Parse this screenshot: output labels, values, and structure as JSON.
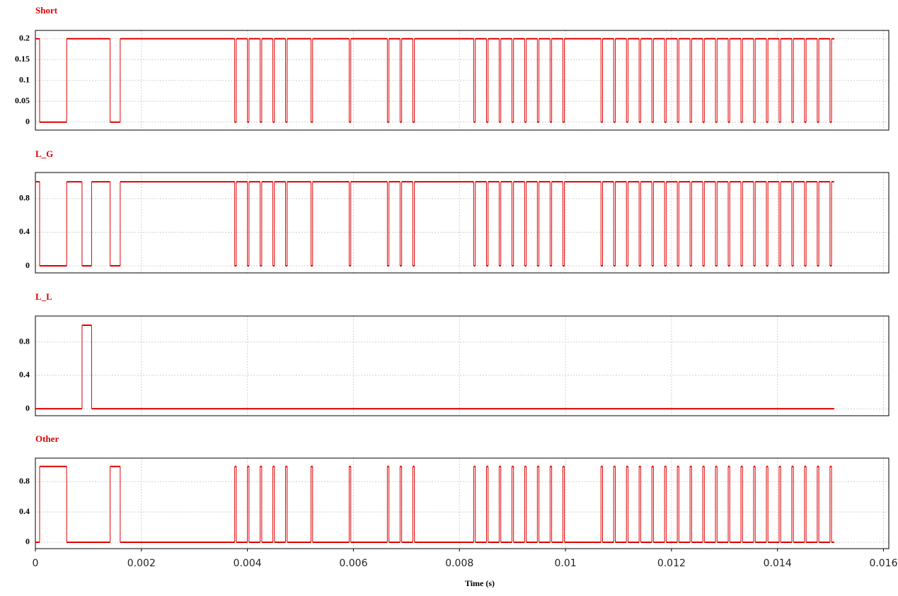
{
  "chart_data": [
    {
      "type": "line",
      "step": "post",
      "title": "Short",
      "color": "#e00000",
      "grid": true,
      "xlim": [
        0,
        0.0161
      ],
      "ylim": [
        -0.019,
        0.22
      ],
      "yticks": [
        0,
        0.05,
        0.1,
        0.15,
        0.2
      ],
      "x": [
        0,
        8e-05,
        0.00059,
        0.00141,
        0.0016,
        0.00376,
        0.00379,
        0.004,
        0.00403,
        0.00424,
        0.00427,
        0.00448,
        0.00451,
        0.00472,
        0.00475,
        0.0052,
        0.00523,
        0.00592,
        0.00595,
        0.00664,
        0.00667,
        0.00688,
        0.00691,
        0.00712,
        0.00715,
        0.00827,
        0.0083,
        0.00851,
        0.00854,
        0.00875,
        0.00878,
        0.00899,
        0.00902,
        0.00923,
        0.00926,
        0.00947,
        0.0095,
        0.00971,
        0.00974,
        0.00995,
        0.00998,
        0.01067,
        0.0107,
        0.01091,
        0.01094,
        0.01115,
        0.01118,
        0.01139,
        0.01142,
        0.01163,
        0.01166,
        0.01187,
        0.0119,
        0.01211,
        0.01214,
        0.01235,
        0.01238,
        0.01259,
        0.01262,
        0.01283,
        0.01286,
        0.01307,
        0.0131,
        0.01331,
        0.01334,
        0.01355,
        0.01358,
        0.01379,
        0.01382,
        0.01403,
        0.01406,
        0.01427,
        0.0143,
        0.01451,
        0.01454,
        0.01475,
        0.01478,
        0.01499,
        0.01502,
        0.01507
      ],
      "values": [
        0.2,
        0,
        0.2,
        0,
        0.2,
        0,
        0.2,
        0,
        0.2,
        0,
        0.2,
        0,
        0.2,
        0,
        0.2,
        0,
        0.2,
        0,
        0.2,
        0,
        0.2,
        0,
        0.2,
        0,
        0.2,
        0,
        0.2,
        0,
        0.2,
        0,
        0.2,
        0,
        0.2,
        0,
        0.2,
        0,
        0.2,
        0,
        0.2,
        0,
        0.2,
        0,
        0.2,
        0,
        0.2,
        0,
        0.2,
        0,
        0.2,
        0,
        0.2,
        0,
        0.2,
        0,
        0.2,
        0,
        0.2,
        0,
        0.2,
        0,
        0.2,
        0,
        0.2,
        0,
        0.2,
        0,
        0.2,
        0,
        0.2,
        0,
        0.2,
        0,
        0.2,
        0,
        0.2,
        0,
        0.2,
        0,
        0.2,
        0.2
      ]
    },
    {
      "type": "line",
      "step": "post",
      "title": "L_G",
      "color": "#e00000",
      "grid": true,
      "xlim": [
        0,
        0.0161
      ],
      "ylim": [
        -0.084,
        1.11
      ],
      "yticks": [
        0,
        0.4,
        0.8
      ],
      "x": [
        0,
        8e-05,
        0.00059,
        0.00088,
        0.00106,
        0.00141,
        0.0016,
        0.00376,
        0.00379,
        0.004,
        0.00403,
        0.00424,
        0.00427,
        0.00448,
        0.00451,
        0.00472,
        0.00475,
        0.0052,
        0.00523,
        0.00592,
        0.00595,
        0.00664,
        0.00667,
        0.00688,
        0.00691,
        0.00712,
        0.00715,
        0.00827,
        0.0083,
        0.00851,
        0.00854,
        0.00875,
        0.00878,
        0.00899,
        0.00902,
        0.00923,
        0.00926,
        0.00947,
        0.0095,
        0.00971,
        0.00974,
        0.00995,
        0.00998,
        0.01067,
        0.0107,
        0.01091,
        0.01094,
        0.01115,
        0.01118,
        0.01139,
        0.01142,
        0.01163,
        0.01166,
        0.01187,
        0.0119,
        0.01211,
        0.01214,
        0.01235,
        0.01238,
        0.01259,
        0.01262,
        0.01283,
        0.01286,
        0.01307,
        0.0131,
        0.01331,
        0.01334,
        0.01355,
        0.01358,
        0.01379,
        0.01382,
        0.01403,
        0.01406,
        0.01427,
        0.0143,
        0.01451,
        0.01454,
        0.01475,
        0.01478,
        0.01499,
        0.01502,
        0.01507
      ],
      "values": [
        1,
        0,
        1,
        0,
        1,
        0,
        1,
        0,
        1,
        0,
        1,
        0,
        1,
        0,
        1,
        0,
        1,
        0,
        1,
        0,
        1,
        0,
        1,
        0,
        1,
        0,
        1,
        0,
        1,
        0,
        1,
        0,
        1,
        0,
        1,
        0,
        1,
        0,
        1,
        0,
        1,
        0,
        1,
        0,
        1,
        0,
        1,
        0,
        1,
        0,
        1,
        0,
        1,
        0,
        1,
        0,
        1,
        0,
        1,
        0,
        1,
        0,
        1,
        0,
        1,
        0,
        1,
        0,
        1,
        0,
        1,
        0,
        1,
        0,
        1,
        0,
        1,
        0,
        1,
        0,
        1,
        1
      ]
    },
    {
      "type": "line",
      "step": "post",
      "title": "L_L",
      "color": "#e00000",
      "grid": true,
      "xlim": [
        0,
        0.0161
      ],
      "ylim": [
        -0.084,
        1.11
      ],
      "yticks": [
        0,
        0.4,
        0.8
      ],
      "x": [
        0,
        0.00088,
        0.00106,
        0.01507
      ],
      "values": [
        0,
        1,
        0,
        0
      ]
    },
    {
      "type": "line",
      "step": "post",
      "title": "Other",
      "color": "#e00000",
      "grid": true,
      "xlim": [
        0,
        0.0161
      ],
      "ylim": [
        -0.084,
        1.11
      ],
      "yticks": [
        0,
        0.4,
        0.8
      ],
      "xticks": [
        0,
        0.002,
        0.004,
        0.006,
        0.008,
        0.01,
        0.012,
        0.014,
        0.016
      ],
      "xlabel": "Time (s)",
      "x": [
        0,
        8e-05,
        0.00059,
        0.00141,
        0.0016,
        0.00376,
        0.00379,
        0.004,
        0.00403,
        0.00424,
        0.00427,
        0.00448,
        0.00451,
        0.00472,
        0.00475,
        0.0052,
        0.00523,
        0.00592,
        0.00595,
        0.00664,
        0.00667,
        0.00688,
        0.00691,
        0.00712,
        0.00715,
        0.00827,
        0.0083,
        0.00851,
        0.00854,
        0.00875,
        0.00878,
        0.00899,
        0.00902,
        0.00923,
        0.00926,
        0.00947,
        0.0095,
        0.00971,
        0.00974,
        0.00995,
        0.00998,
        0.01067,
        0.0107,
        0.01091,
        0.01094,
        0.01115,
        0.01118,
        0.01139,
        0.01142,
        0.01163,
        0.01166,
        0.01187,
        0.0119,
        0.01211,
        0.01214,
        0.01235,
        0.01238,
        0.01259,
        0.01262,
        0.01283,
        0.01286,
        0.01307,
        0.0131,
        0.01331,
        0.01334,
        0.01355,
        0.01358,
        0.01379,
        0.01382,
        0.01403,
        0.01406,
        0.01427,
        0.0143,
        0.01451,
        0.01454,
        0.01475,
        0.01478,
        0.01499,
        0.01502,
        0.01507
      ],
      "values": [
        0,
        1,
        0,
        1,
        0,
        1,
        0,
        1,
        0,
        1,
        0,
        1,
        0,
        1,
        0,
        1,
        0,
        1,
        0,
        1,
        0,
        1,
        0,
        1,
        0,
        1,
        0,
        1,
        0,
        1,
        0,
        1,
        0,
        1,
        0,
        1,
        0,
        1,
        0,
        1,
        0,
        1,
        0,
        1,
        0,
        1,
        0,
        1,
        0,
        1,
        0,
        1,
        0,
        1,
        0,
        1,
        0,
        1,
        0,
        1,
        0,
        1,
        0,
        1,
        0,
        1,
        0,
        1,
        0,
        1,
        0,
        1,
        0,
        1,
        0,
        1,
        0,
        1,
        0,
        0
      ]
    }
  ]
}
